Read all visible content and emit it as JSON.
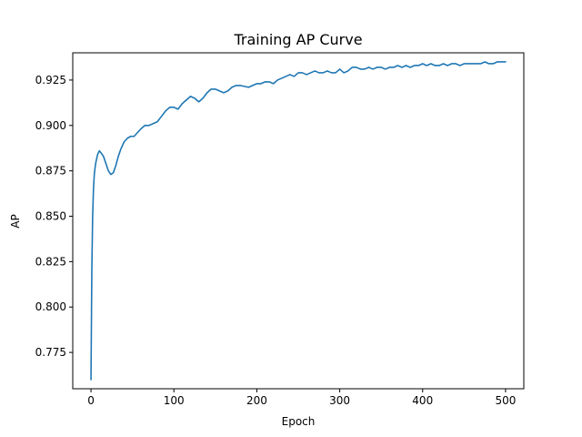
{
  "chart_data": {
    "type": "line",
    "title": "Training AP Curve",
    "xlabel": "Epoch",
    "ylabel": "AP",
    "xlim": [
      -22,
      522
    ],
    "ylim": [
      0.755,
      0.94
    ],
    "x_ticks": [
      0,
      100,
      200,
      300,
      400,
      500
    ],
    "y_ticks": [
      0.775,
      0.8,
      0.825,
      0.85,
      0.875,
      0.9,
      0.925
    ],
    "grid": false,
    "series": [
      {
        "color": "#1f77b4",
        "x": [
          0,
          1,
          2,
          3,
          4,
          5,
          6,
          8,
          10,
          12,
          15,
          18,
          21,
          24,
          27,
          30,
          33,
          36,
          40,
          44,
          48,
          52,
          56,
          60,
          65,
          70,
          75,
          80,
          85,
          90,
          95,
          100,
          105,
          110,
          115,
          120,
          125,
          130,
          135,
          140,
          145,
          150,
          155,
          160,
          165,
          170,
          175,
          180,
          190,
          200,
          205,
          210,
          215,
          220,
          225,
          230,
          235,
          240,
          245,
          250,
          255,
          260,
          265,
          270,
          275,
          280,
          285,
          290,
          295,
          300,
          305,
          310,
          315,
          320,
          325,
          330,
          335,
          340,
          345,
          350,
          355,
          360,
          365,
          370,
          375,
          380,
          385,
          390,
          395,
          400,
          405,
          410,
          415,
          420,
          425,
          430,
          435,
          440,
          445,
          450,
          455,
          460,
          465,
          470,
          475,
          480,
          485,
          490,
          495,
          500
        ],
        "y": [
          0.76,
          0.82,
          0.85,
          0.865,
          0.873,
          0.877,
          0.88,
          0.884,
          0.886,
          0.885,
          0.883,
          0.879,
          0.875,
          0.873,
          0.874,
          0.878,
          0.883,
          0.887,
          0.891,
          0.893,
          0.894,
          0.894,
          0.896,
          0.898,
          0.9,
          0.9,
          0.901,
          0.902,
          0.905,
          0.908,
          0.91,
          0.91,
          0.909,
          0.912,
          0.914,
          0.916,
          0.915,
          0.913,
          0.915,
          0.918,
          0.92,
          0.92,
          0.919,
          0.918,
          0.919,
          0.921,
          0.922,
          0.922,
          0.921,
          0.923,
          0.923,
          0.924,
          0.924,
          0.923,
          0.925,
          0.926,
          0.927,
          0.928,
          0.927,
          0.929,
          0.929,
          0.928,
          0.929,
          0.93,
          0.929,
          0.929,
          0.93,
          0.929,
          0.929,
          0.931,
          0.929,
          0.93,
          0.932,
          0.932,
          0.931,
          0.931,
          0.932,
          0.931,
          0.932,
          0.932,
          0.931,
          0.932,
          0.932,
          0.933,
          0.932,
          0.933,
          0.932,
          0.933,
          0.933,
          0.934,
          0.933,
          0.934,
          0.933,
          0.933,
          0.934,
          0.933,
          0.934,
          0.934,
          0.933,
          0.934,
          0.934,
          0.934,
          0.934,
          0.934,
          0.935,
          0.934,
          0.934,
          0.935,
          0.935,
          0.935
        ]
      }
    ]
  }
}
